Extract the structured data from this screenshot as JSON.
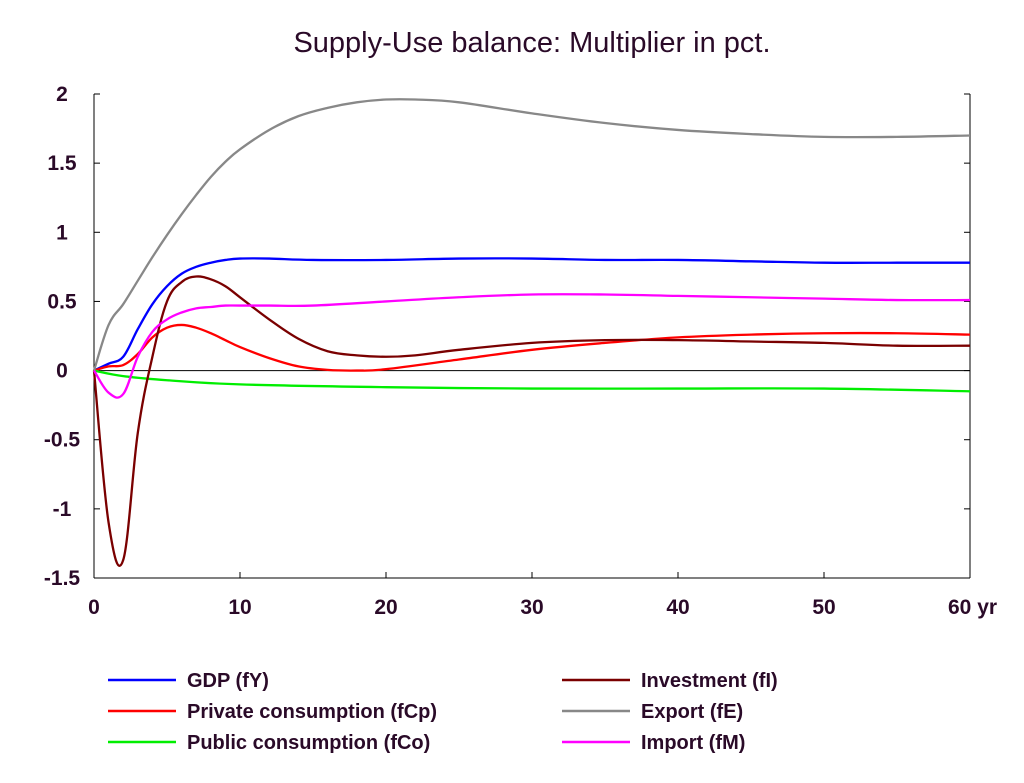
{
  "chart_data": {
    "type": "line",
    "title": "Supply-Use balance: Multiplier in pct.",
    "xlabel": "",
    "ylabel": "",
    "x_unit": "yr",
    "xlim": [
      0,
      60
    ],
    "ylim": [
      -1.5,
      2
    ],
    "x_ticks": [
      0,
      10,
      20,
      30,
      40,
      50,
      60
    ],
    "x_tick_labels": [
      "0",
      "10",
      "20",
      "30",
      "40",
      "50",
      "60 yr"
    ],
    "y_ticks": [
      -1.5,
      -1,
      -0.5,
      0,
      0.5,
      1,
      1.5,
      2
    ],
    "y_tick_labels": [
      "-1.5",
      "-1",
      "-0.5",
      "0",
      "0.5",
      "1",
      "1.5",
      "2"
    ],
    "grid": false,
    "zero_line": true,
    "legend_position": "bottom",
    "series": [
      {
        "name": "GDP (fY)",
        "color": "#0000ff",
        "x": [
          0,
          1,
          2,
          3,
          4,
          5,
          6,
          7,
          8,
          9,
          10,
          12,
          15,
          20,
          25,
          30,
          35,
          40,
          45,
          50,
          55,
          60
        ],
        "y": [
          0,
          0.05,
          0.1,
          0.3,
          0.48,
          0.61,
          0.7,
          0.75,
          0.78,
          0.8,
          0.81,
          0.81,
          0.8,
          0.8,
          0.81,
          0.81,
          0.8,
          0.8,
          0.79,
          0.78,
          0.78,
          0.78
        ]
      },
      {
        "name": "Private consumption (fCp)",
        "color": "#ff0000",
        "x": [
          0,
          1,
          2,
          3,
          4,
          5,
          6,
          7,
          8,
          9,
          10,
          12,
          14,
          16,
          18,
          20,
          25,
          30,
          35,
          40,
          45,
          50,
          55,
          60
        ],
        "y": [
          0,
          0.03,
          0.04,
          0.12,
          0.24,
          0.31,
          0.33,
          0.31,
          0.27,
          0.22,
          0.17,
          0.09,
          0.03,
          0.005,
          0,
          0.01,
          0.08,
          0.15,
          0.2,
          0.24,
          0.26,
          0.27,
          0.27,
          0.26
        ]
      },
      {
        "name": "Public consumption (fCo)",
        "color": "#00ee00",
        "x": [
          0,
          2,
          5,
          10,
          20,
          30,
          40,
          50,
          60
        ],
        "y": [
          0,
          -0.04,
          -0.07,
          -0.1,
          -0.12,
          -0.13,
          -0.13,
          -0.13,
          -0.15
        ]
      },
      {
        "name": "Investment (fI)",
        "color": "#7a0000",
        "x": [
          0,
          1,
          2,
          3,
          4,
          5,
          6,
          7,
          8,
          9,
          10,
          12,
          14,
          16,
          18,
          20,
          22,
          25,
          30,
          35,
          40,
          45,
          50,
          55,
          60
        ],
        "y": [
          0,
          -1.1,
          -1.37,
          -0.45,
          0.1,
          0.5,
          0.64,
          0.68,
          0.66,
          0.61,
          0.53,
          0.37,
          0.23,
          0.14,
          0.11,
          0.1,
          0.11,
          0.15,
          0.2,
          0.22,
          0.22,
          0.21,
          0.2,
          0.18,
          0.18
        ]
      },
      {
        "name": "Export (fE)",
        "color": "#888888",
        "x": [
          0,
          1,
          2,
          3,
          4,
          5,
          6,
          7,
          8,
          9,
          10,
          12,
          14,
          16,
          18,
          20,
          22,
          25,
          30,
          35,
          40,
          45,
          50,
          55,
          60
        ],
        "y": [
          0,
          0.33,
          0.48,
          0.65,
          0.82,
          0.98,
          1.13,
          1.27,
          1.4,
          1.51,
          1.6,
          1.74,
          1.84,
          1.9,
          1.94,
          1.96,
          1.96,
          1.94,
          1.86,
          1.79,
          1.74,
          1.71,
          1.69,
          1.69,
          1.7
        ]
      },
      {
        "name": "Import (fM)",
        "color": "#ff00ff",
        "x": [
          0,
          1,
          2,
          3,
          4,
          5,
          6,
          7,
          8,
          9,
          10,
          12,
          15,
          20,
          25,
          30,
          35,
          40,
          45,
          50,
          55,
          60
        ],
        "y": [
          0,
          -0.16,
          -0.17,
          0.1,
          0.28,
          0.37,
          0.42,
          0.45,
          0.46,
          0.47,
          0.47,
          0.47,
          0.47,
          0.5,
          0.53,
          0.55,
          0.55,
          0.54,
          0.53,
          0.52,
          0.51,
          0.51
        ]
      }
    ]
  }
}
